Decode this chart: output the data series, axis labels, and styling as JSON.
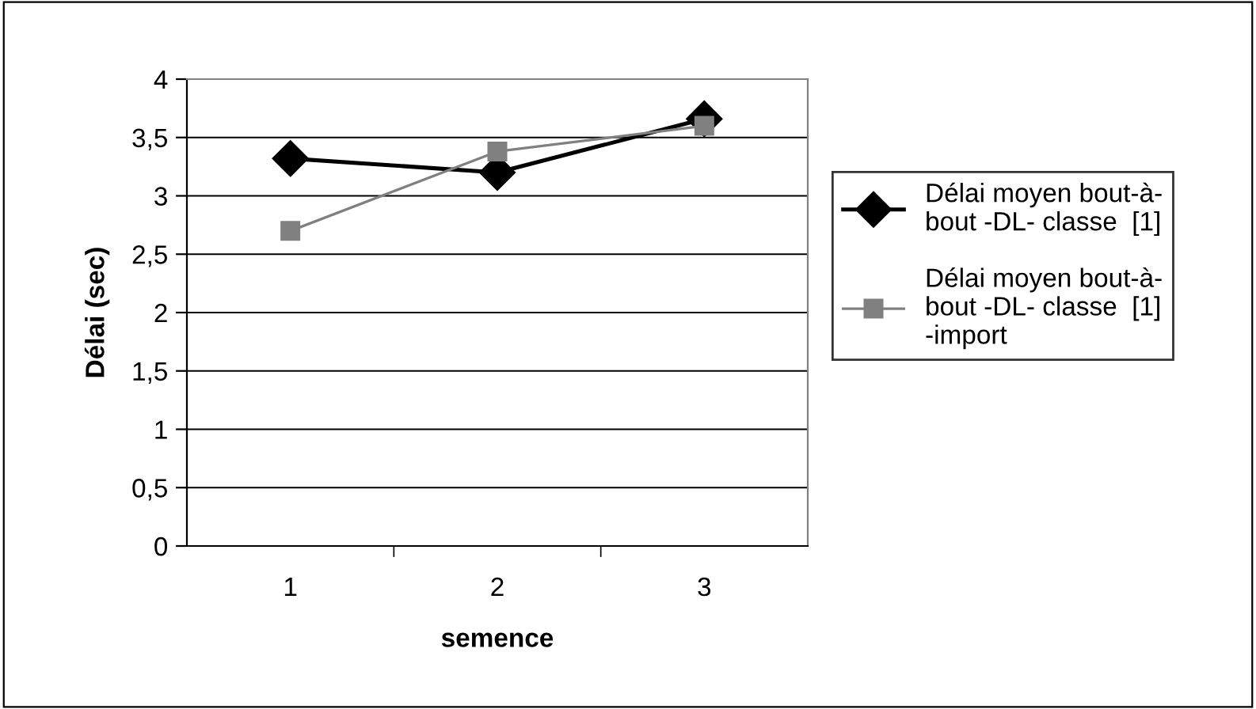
{
  "chart_data": {
    "type": "line",
    "xlabel": "semence",
    "ylabel": "Délai (sec)",
    "categories": [
      "1",
      "2",
      "3"
    ],
    "series": [
      {
        "name": "Délai moyen bout-à-\nbout -DL- classe  [1]",
        "color": "#000000",
        "marker": "diamond",
        "values": [
          3.32,
          3.2,
          3.66
        ]
      },
      {
        "name": "Délai moyen bout-à-\nbout -DL- classe  [1]\n-import",
        "color": "#808080",
        "marker": "square",
        "values": [
          2.7,
          3.38,
          3.6
        ]
      }
    ],
    "ylim": [
      0,
      4
    ],
    "yticks": [
      0,
      {
        "value": 0.5,
        "label": "0,5"
      },
      1,
      {
        "value": 1.5,
        "label": "1,5"
      },
      2,
      {
        "value": 2.5,
        "label": "2,5"
      },
      3,
      {
        "value": 3.5,
        "label": "3,5"
      },
      4
    ],
    "grid": "y",
    "legend": "right"
  }
}
